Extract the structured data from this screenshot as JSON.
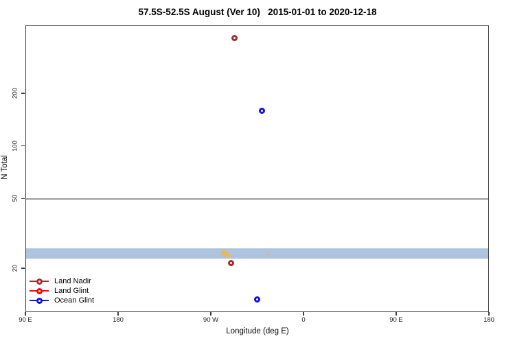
{
  "chart_data": {
    "type": "scatter",
    "title": "57.5S-52.5S August (Ver 10)   2015-01-01 to 2020-12-18",
    "xlabel": "Longitude (deg E)",
    "ylabel": "N Total",
    "x_axis": {
      "span_deg": 450,
      "start_label": "90 E",
      "ticks": [
        {
          "axis_deg": 0,
          "label": "90 E"
        },
        {
          "axis_deg": 90,
          "label": "180"
        },
        {
          "axis_deg": 180,
          "label": "90 W"
        },
        {
          "axis_deg": 270,
          "label": "0"
        },
        {
          "axis_deg": 360,
          "label": "90 E"
        },
        {
          "axis_deg": 450,
          "label": "180"
        }
      ]
    },
    "y_axis": {
      "scale": "log",
      "ylim": [
        11.2,
        489
      ],
      "ticks": [
        20,
        50,
        100,
        200
      ]
    },
    "reference_line": {
      "n": 50,
      "color": "#9a9a9a"
    },
    "band": {
      "n_min": 22.9,
      "n_max": 26.2,
      "color": "#AEC3DE"
    },
    "grid": "off",
    "legend_position": "bottom-left-inside",
    "series": [
      {
        "name": "Land Nadir",
        "color": "#A52A2A",
        "points": [
          {
            "lon": -68,
            "n": 416
          },
          {
            "lon": -71,
            "n": 21.5
          }
        ]
      },
      {
        "name": "Land Glint",
        "color": "#FF0000",
        "points": []
      },
      {
        "name": "Ocean Glint",
        "color": "#1010EE",
        "points": [
          {
            "lon": -41,
            "n": 160
          },
          {
            "lon": -46,
            "n": 13.3
          }
        ]
      }
    ],
    "unlabeled_orange_points": {
      "color": "#F2B54A",
      "points": [
        {
          "lon": -80.0,
          "n": 24.6
        },
        {
          "lon": -79.3,
          "n": 25.1
        },
        {
          "lon": -78.7,
          "n": 24.2
        },
        {
          "lon": -78.2,
          "n": 25.3
        },
        {
          "lon": -77.6,
          "n": 24.8
        },
        {
          "lon": -77.2,
          "n": 23.9
        },
        {
          "lon": -76.6,
          "n": 24.9
        },
        {
          "lon": -76.0,
          "n": 24.3
        },
        {
          "lon": -75.4,
          "n": 23.6
        },
        {
          "lon": -75.0,
          "n": 24.7
        },
        {
          "lon": -74.4,
          "n": 24.0
        },
        {
          "lon": -73.8,
          "n": 23.5
        },
        {
          "lon": -73.2,
          "n": 24.1
        },
        {
          "lon": -72.5,
          "n": 23.7
        },
        {
          "lon": -71.8,
          "n": 23.9
        },
        {
          "lon": -36.0,
          "n": 24.3
        }
      ]
    }
  }
}
